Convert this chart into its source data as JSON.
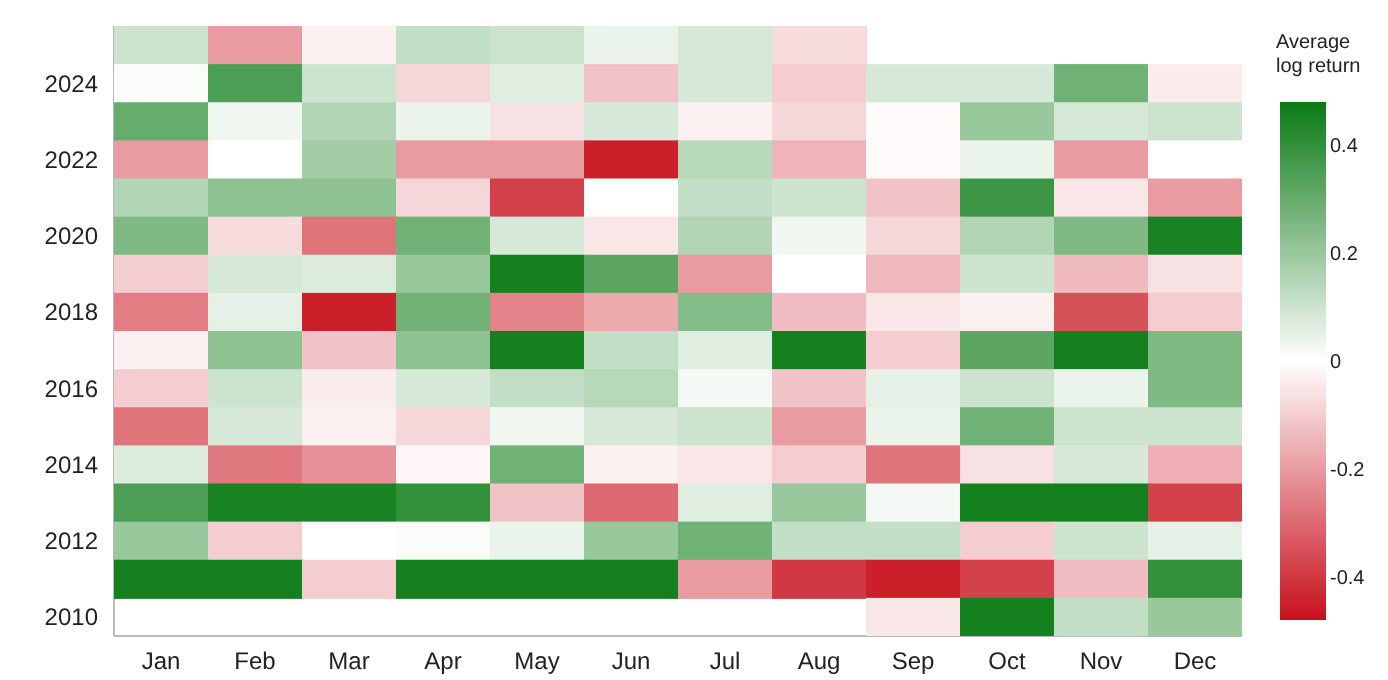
{
  "chart_data": {
    "type": "heatmap",
    "legend_title": "Average\nlog return",
    "categories": [
      "Jan",
      "Feb",
      "Mar",
      "Apr",
      "May",
      "Jun",
      "Jul",
      "Aug",
      "Sep",
      "Oct",
      "Nov",
      "Dec"
    ],
    "y_categories": [
      null,
      "2024",
      null,
      "2022",
      null,
      "2020",
      null,
      "2018",
      null,
      "2016",
      null,
      "2014",
      null,
      "2012",
      null,
      "2010"
    ],
    "cells": [
      [
        0.1,
        -0.2,
        -0.03,
        0.12,
        0.1,
        0.04,
        0.08,
        -0.07,
        null,
        null,
        null,
        null
      ],
      [
        0.01,
        0.35,
        0.1,
        -0.08,
        0.06,
        -0.12,
        0.08,
        -0.1,
        0.08,
        0.08,
        0.28,
        -0.04
      ],
      [
        0.3,
        0.03,
        0.15,
        0.04,
        -0.06,
        0.08,
        -0.03,
        -0.08,
        -0.01,
        0.2,
        0.08,
        0.1
      ],
      [
        -0.2,
        0,
        0.18,
        -0.2,
        -0.2,
        -0.45,
        0.14,
        -0.15,
        -0.01,
        0.04,
        -0.2,
        0
      ],
      [
        0.15,
        0.22,
        0.22,
        -0.08,
        -0.38,
        0,
        0.12,
        0.1,
        -0.12,
        0.38,
        -0.05,
        -0.2
      ],
      [
        0.25,
        -0.07,
        -0.28,
        0.28,
        0.08,
        -0.05,
        0.15,
        0.03,
        -0.08,
        0.15,
        0.25,
        0.45
      ],
      [
        -0.1,
        0.08,
        0.07,
        0.2,
        0.46,
        0.32,
        -0.2,
        0,
        -0.14,
        0.1,
        -0.14,
        -0.06
      ],
      [
        -0.26,
        0.05,
        -0.45,
        0.28,
        -0.25,
        -0.17,
        0.24,
        -0.13,
        -0.05,
        -0.03,
        -0.35,
        -0.1
      ],
      [
        -0.03,
        0.22,
        -0.12,
        0.22,
        0.46,
        0.12,
        0.06,
        0.46,
        -0.1,
        0.32,
        0.46,
        0.25
      ],
      [
        -0.1,
        0.1,
        -0.04,
        0.08,
        0.12,
        0.14,
        0.02,
        -0.12,
        0.05,
        0.1,
        0.04,
        0.25
      ],
      [
        -0.28,
        0.08,
        -0.03,
        -0.08,
        0.03,
        0.08,
        0.1,
        -0.2,
        0.04,
        0.28,
        0.1,
        0.1
      ],
      [
        0.07,
        -0.27,
        -0.22,
        -0.02,
        0.28,
        -0.03,
        -0.05,
        -0.1,
        -0.28,
        -0.06,
        0.08,
        -0.16
      ],
      [
        0.35,
        0.45,
        0.45,
        0.4,
        -0.12,
        -0.3,
        0.06,
        0.2,
        0.02,
        0.46,
        0.46,
        -0.38
      ],
      [
        0.2,
        -0.1,
        0,
        0.01,
        0.04,
        0.2,
        0.28,
        0.12,
        0.12,
        -0.1,
        0.1,
        0.05
      ],
      [
        0.46,
        0.46,
        -0.1,
        0.46,
        0.46,
        0.46,
        -0.2,
        -0.4,
        -0.45,
        -0.38,
        -0.13,
        0.4
      ],
      [
        null,
        null,
        null,
        null,
        null,
        null,
        null,
        null,
        -0.05,
        0.46,
        0.12,
        0.2
      ]
    ],
    "clim": [
      -0.48,
      0.48
    ],
    "cticks": [
      0.4,
      0.2,
      0,
      -0.2,
      -0.4
    ],
    "colors": [
      "#c8101c",
      "#ffffff",
      "#0a7a14"
    ]
  }
}
